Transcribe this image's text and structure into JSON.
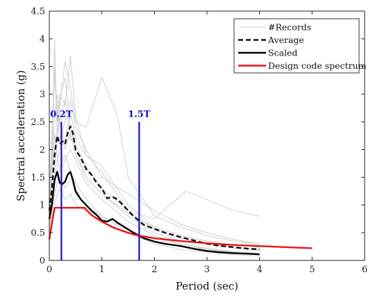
{
  "chart_data": {
    "type": "line",
    "xlabel": "Period (sec)",
    "ylabel": "Spectral acceleration (g)",
    "xlim": [
      0,
      6
    ],
    "ylim": [
      0,
      4.5
    ],
    "x_ticks": [
      "0",
      "1",
      "2",
      "3",
      "4",
      "5",
      "6"
    ],
    "y_ticks": [
      "0",
      "0.5",
      "1",
      "1.5",
      "2",
      "2.5",
      "3",
      "3.5",
      "4",
      "4.5"
    ],
    "grid": false,
    "legend_position": "top-right",
    "legend": [
      "#Records",
      "Average",
      "Scaled",
      "Design code spectrum"
    ],
    "colors": {
      "records": "#cfcfcf",
      "average": "#111111",
      "scaled": "#000000",
      "design": "#ee1111",
      "markers": "#1111cc"
    },
    "markers": [
      {
        "label": "0.2T",
        "x": 0.23,
        "y_top": 2.5
      },
      {
        "label": "1.5T",
        "x": 1.71,
        "y_top": 2.5
      }
    ],
    "series": [
      {
        "name": "Average",
        "style": "dashed",
        "x": [
          0,
          0.05,
          0.1,
          0.15,
          0.2,
          0.25,
          0.3,
          0.35,
          0.4,
          0.45,
          0.5,
          0.6,
          0.7,
          0.8,
          0.9,
          1.0,
          1.1,
          1.2,
          1.3,
          1.4,
          1.5,
          1.6,
          1.7,
          1.8,
          2.0,
          2.2,
          2.5,
          2.8,
          3.0,
          3.2,
          3.5,
          3.8,
          4.0
        ],
        "y": [
          0.9,
          1.3,
          1.9,
          2.25,
          2.1,
          2.15,
          2.1,
          2.3,
          2.42,
          2.3,
          2.0,
          1.85,
          1.65,
          1.55,
          1.4,
          1.3,
          1.12,
          1.15,
          1.1,
          1.0,
          0.9,
          0.8,
          0.72,
          0.64,
          0.57,
          0.5,
          0.42,
          0.35,
          0.3,
          0.27,
          0.24,
          0.21,
          0.2
        ]
      },
      {
        "name": "Scaled",
        "style": "solid",
        "x": [
          0,
          0.05,
          0.1,
          0.15,
          0.2,
          0.25,
          0.3,
          0.35,
          0.4,
          0.45,
          0.5,
          0.6,
          0.7,
          0.8,
          0.9,
          1.0,
          1.1,
          1.2,
          1.3,
          1.4,
          1.5,
          1.6,
          1.7,
          1.8,
          2.0,
          2.2,
          2.5,
          2.8,
          3.0,
          3.2,
          3.5,
          3.8,
          4.0
        ],
        "y": [
          0.75,
          1.0,
          1.45,
          1.6,
          1.4,
          1.38,
          1.42,
          1.55,
          1.6,
          1.45,
          1.25,
          1.1,
          1.0,
          0.9,
          0.82,
          0.72,
          0.7,
          0.75,
          0.68,
          0.62,
          0.56,
          0.5,
          0.45,
          0.4,
          0.34,
          0.3,
          0.26,
          0.2,
          0.17,
          0.15,
          0.13,
          0.12,
          0.11
        ]
      },
      {
        "name": "Design code spectrum",
        "style": "solid",
        "x": [
          0,
          0.1,
          0.67,
          0.8,
          1.0,
          1.2,
          1.4,
          1.6,
          1.8,
          2.0,
          2.5,
          3.0,
          3.5,
          4.0,
          4.5,
          5.0
        ],
        "y": [
          0.38,
          0.95,
          0.95,
          0.82,
          0.7,
          0.6,
          0.53,
          0.47,
          0.43,
          0.4,
          0.35,
          0.31,
          0.28,
          0.26,
          0.24,
          0.22
        ]
      }
    ],
    "records": [
      {
        "x": [
          0,
          0.05,
          0.1,
          0.15,
          0.2,
          0.3,
          0.4,
          0.5,
          0.7,
          1.0,
          1.5,
          2.0,
          2.5,
          3.0,
          3.5,
          4.0
        ],
        "y": [
          1.0,
          2.0,
          3.4,
          2.5,
          3.0,
          2.8,
          3.7,
          2.6,
          1.9,
          1.7,
          1.0,
          0.6,
          0.45,
          0.35,
          0.28,
          0.25
        ]
      },
      {
        "x": [
          0,
          0.05,
          0.1,
          0.15,
          0.2,
          0.3,
          0.4,
          0.5,
          0.7,
          1.0,
          1.5,
          2.0,
          2.5,
          3.0,
          3.5,
          4.0
        ],
        "y": [
          0.8,
          1.8,
          4.0,
          2.2,
          2.9,
          3.3,
          2.4,
          2.0,
          1.5,
          1.2,
          0.8,
          0.5,
          0.35,
          0.3,
          0.22,
          0.18
        ]
      },
      {
        "x": [
          0,
          0.05,
          0.1,
          0.15,
          0.2,
          0.3,
          0.4,
          0.5,
          0.7,
          1.0,
          1.3,
          1.5,
          2.0,
          2.5,
          3.0,
          3.5,
          4.0
        ],
        "y": [
          0.6,
          1.2,
          1.6,
          2.2,
          2.8,
          3.6,
          3.1,
          2.5,
          2.4,
          3.3,
          2.6,
          1.5,
          0.8,
          0.6,
          0.45,
          0.35,
          0.3
        ]
      },
      {
        "x": [
          0,
          0.05,
          0.1,
          0.15,
          0.2,
          0.3,
          0.4,
          0.5,
          0.7,
          1.0,
          1.5,
          2.0,
          2.3,
          2.6,
          3.0,
          3.5,
          4.0
        ],
        "y": [
          0.5,
          1.0,
          1.4,
          1.8,
          2.0,
          2.2,
          2.7,
          2.2,
          1.9,
          1.6,
          0.9,
          0.75,
          1.0,
          1.25,
          1.1,
          0.9,
          0.8
        ]
      },
      {
        "x": [
          0,
          0.05,
          0.1,
          0.15,
          0.2,
          0.3,
          0.4,
          0.5,
          0.7,
          1.0,
          1.5,
          2.0,
          2.5,
          3.0,
          3.5,
          4.0
        ],
        "y": [
          0.7,
          1.5,
          2.3,
          1.9,
          1.6,
          1.8,
          2.0,
          1.8,
          1.4,
          1.1,
          0.7,
          0.45,
          0.3,
          0.22,
          0.16,
          0.12
        ]
      },
      {
        "x": [
          0,
          0.05,
          0.1,
          0.15,
          0.2,
          0.3,
          0.4,
          0.5,
          0.7,
          1.0,
          1.5,
          2.0,
          2.5,
          3.0,
          3.5,
          4.0
        ],
        "y": [
          0.6,
          1.1,
          1.5,
          1.6,
          1.5,
          1.3,
          1.5,
          1.2,
          1.0,
          0.8,
          0.55,
          0.4,
          0.3,
          0.2,
          0.15,
          0.1
        ]
      },
      {
        "x": [
          0,
          0.05,
          0.1,
          0.15,
          0.2,
          0.3,
          0.4,
          0.5,
          0.7,
          1.0,
          1.5,
          2.0,
          2.5,
          3.0,
          3.5,
          4.0
        ],
        "y": [
          0.9,
          1.7,
          2.6,
          3.0,
          2.4,
          2.9,
          2.2,
          2.1,
          1.7,
          1.3,
          0.9,
          0.55,
          0.4,
          0.3,
          0.25,
          0.2
        ]
      },
      {
        "x": [
          0,
          0.05,
          0.1,
          0.15,
          0.2,
          0.3,
          0.4,
          0.5,
          0.7,
          1.0,
          1.5,
          2.0,
          2.5,
          3.0,
          3.5,
          4.0
        ],
        "y": [
          0.4,
          0.8,
          1.0,
          1.2,
          1.3,
          1.1,
          1.2,
          1.0,
          0.9,
          0.7,
          0.5,
          0.35,
          0.25,
          0.2,
          0.15,
          0.12
        ]
      },
      {
        "x": [
          0,
          0.05,
          0.1,
          0.15,
          0.2,
          0.3,
          0.4,
          0.5,
          0.7,
          1.0,
          1.5,
          2.0,
          2.5,
          3.0,
          3.5,
          4.0
        ],
        "y": [
          1.1,
          2.4,
          3.5,
          2.7,
          2.2,
          2.5,
          2.9,
          2.4,
          2.0,
          1.5,
          1.2,
          0.9,
          0.65,
          0.5,
          0.38,
          0.3
        ]
      },
      {
        "x": [
          0,
          0.05,
          0.1,
          0.15,
          0.2,
          0.3,
          0.4,
          0.5,
          0.7,
          1.0,
          1.5,
          2.0,
          2.5,
          3.0,
          3.5,
          4.0
        ],
        "y": [
          0.5,
          0.9,
          1.2,
          1.4,
          1.7,
          1.9,
          1.6,
          1.4,
          1.1,
          0.8,
          0.5,
          0.3,
          0.2,
          0.15,
          0.1,
          0.08
        ]
      },
      {
        "x": [
          0,
          0.05,
          0.1,
          0.15,
          0.2,
          0.3,
          0.4,
          0.5,
          0.7,
          1.0,
          1.5,
          2.0,
          2.5,
          3.0,
          3.5,
          4.0
        ],
        "y": [
          0.8,
          1.6,
          2.0,
          2.3,
          2.6,
          2.0,
          2.3,
          1.9,
          1.5,
          1.2,
          0.85,
          0.6,
          0.45,
          0.35,
          0.28,
          0.24
        ]
      }
    ]
  }
}
